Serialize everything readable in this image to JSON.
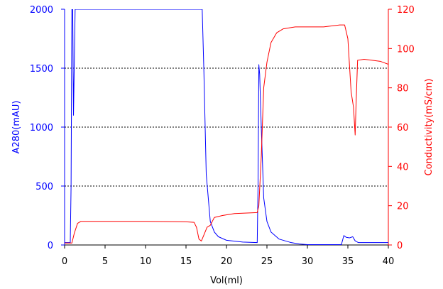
{
  "chart_data": {
    "type": "line",
    "title": "",
    "xlabel": "Vol(ml)",
    "ylabel_left": "A280(mAU)",
    "ylabel_right": "Conductivity(mS/cm)",
    "xlim": [
      0,
      40
    ],
    "ylim_left": [
      0,
      2000
    ],
    "ylim_right": [
      0,
      120
    ],
    "x_ticks": [
      0,
      5,
      10,
      15,
      20,
      25,
      30,
      35,
      40
    ],
    "y_left_ticks": [
      0,
      500,
      1000,
      1500,
      2000
    ],
    "y_right_ticks": [
      0,
      20,
      40,
      60,
      80,
      100,
      120
    ],
    "grid": "dotted horizontal lines at 500, 1000, 1500 mAU",
    "colors": {
      "a280": "#0000ff",
      "conductivity": "#ff0000",
      "axes": "#000000",
      "grid": "#000000"
    },
    "series": [
      {
        "axis": "left",
        "color": "#0000ff",
        "x": [
          0,
          0.7,
          0.8,
          0.9,
          1.0,
          1.1,
          1.3,
          1.5,
          16.5,
          16.9,
          17.0,
          17.2,
          17.5,
          18.0,
          18.5,
          19.0,
          20.0,
          22.0,
          23.8,
          23.9,
          24.0,
          24.1,
          24.3,
          24.6,
          25.0,
          25.5,
          26.5,
          28.0,
          29.0,
          30.0,
          31.0,
          34.2,
          34.5,
          34.8,
          35.2,
          35.6,
          35.9,
          36.3,
          37.0,
          40.0
        ],
        "y": [
          20,
          20,
          500,
          2000,
          2000,
          1100,
          2000,
          2000,
          2000,
          2000,
          2000,
          1500,
          600,
          200,
          110,
          70,
          40,
          25,
          20,
          500,
          1530,
          1450,
          1000,
          400,
          200,
          110,
          50,
          20,
          8,
          3,
          3,
          3,
          80,
          65,
          60,
          70,
          35,
          20,
          20,
          20
        ]
      },
      {
        "axis": "right",
        "color": "#ff0000",
        "x": [
          0,
          0.9,
          1.2,
          1.6,
          2.0,
          3.0,
          10.0,
          15.0,
          16.0,
          16.3,
          16.6,
          16.9,
          17.2,
          17.6,
          18.0,
          18.5,
          19.5,
          21.0,
          23.8,
          24.0,
          24.3,
          24.6,
          25.0,
          25.5,
          26.2,
          27.0,
          28.5,
          30.0,
          32.0,
          34.0,
          34.6,
          35.0,
          35.4,
          35.7,
          35.9,
          36.0,
          36.2,
          37.0,
          38.0,
          39.0,
          40.0
        ],
        "y": [
          1,
          1,
          6,
          11,
          12,
          12,
          12,
          11.8,
          11.5,
          9,
          3,
          2,
          5,
          9,
          10,
          14,
          15,
          16,
          16.5,
          20,
          45,
          80,
          93,
          103,
          108,
          110,
          111,
          111,
          111,
          112,
          112,
          105,
          78,
          70,
          56,
          70,
          94,
          94.5,
          94,
          93.5,
          92
        ]
      }
    ]
  }
}
